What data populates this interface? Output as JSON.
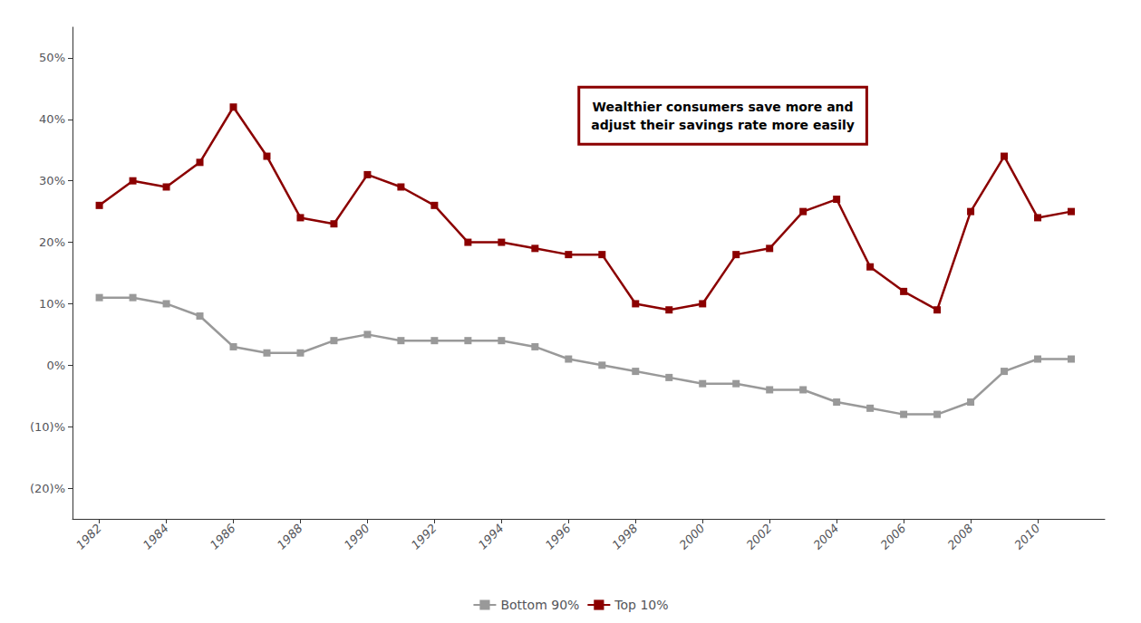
{
  "chart_data": {
    "type": "line",
    "annotation": "Wealthier consumers save more and\nadjust their savings rate more easily",
    "x": [
      1982,
      1983,
      1984,
      1985,
      1986,
      1987,
      1988,
      1989,
      1990,
      1991,
      1992,
      1993,
      1994,
      1995,
      1996,
      1997,
      1998,
      1999,
      2000,
      2001,
      2002,
      2003,
      2004,
      2005,
      2006,
      2007,
      2008,
      2009,
      2010,
      2011
    ],
    "series": [
      {
        "name": "Bottom 90%",
        "color": "#999999",
        "values": [
          0.11,
          0.11,
          0.1,
          0.08,
          0.03,
          0.02,
          0.02,
          0.04,
          0.05,
          0.04,
          0.04,
          0.04,
          0.04,
          0.03,
          0.01,
          0.0,
          -0.01,
          -0.02,
          -0.03,
          -0.03,
          -0.04,
          -0.04,
          -0.06,
          -0.07,
          -0.08,
          -0.08,
          -0.06,
          -0.01,
          0.01,
          0.01
        ]
      },
      {
        "name": "Top 10%",
        "color": "#8B0000",
        "values": [
          0.26,
          0.3,
          0.29,
          0.33,
          0.42,
          0.34,
          0.24,
          0.23,
          0.31,
          0.29,
          0.26,
          0.2,
          0.2,
          0.19,
          0.18,
          0.18,
          0.1,
          0.09,
          0.1,
          0.18,
          0.19,
          0.25,
          0.27,
          0.16,
          0.12,
          0.09,
          0.25,
          0.34,
          0.24,
          0.25
        ]
      }
    ],
    "xlim": [
      1981.2,
      2012.0
    ],
    "xticks": [
      1982,
      1984,
      1986,
      1988,
      1990,
      1992,
      1994,
      1996,
      1998,
      2000,
      2002,
      2004,
      2006,
      2008,
      2010
    ],
    "ylim": [
      -0.25,
      0.55
    ],
    "yticks": [
      {
        "value": -0.2,
        "label": "(20)%"
      },
      {
        "value": -0.1,
        "label": "(10)%"
      },
      {
        "value": 0.0,
        "label": "0%"
      },
      {
        "value": 0.1,
        "label": "10%"
      },
      {
        "value": 0.2,
        "label": "20%"
      },
      {
        "value": 0.3,
        "label": "30%"
      },
      {
        "value": 0.4,
        "label": "40%"
      },
      {
        "value": 0.5,
        "label": "50%"
      }
    ],
    "marker": "square",
    "legend": "bottom",
    "grid": false
  }
}
